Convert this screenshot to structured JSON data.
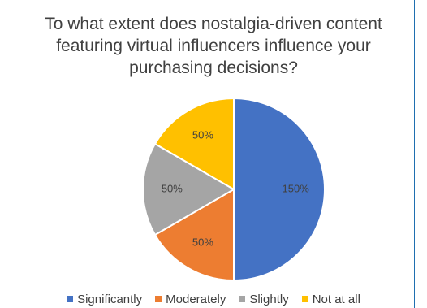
{
  "chart_data": {
    "type": "pie",
    "title_lines": [
      "To what extent does nostalgia-driven content",
      "featuring virtual influencers influence your",
      "purchasing decisions?"
    ],
    "categories": [
      "Significantly",
      "Moderately",
      "Slightly",
      "Not at all"
    ],
    "values": [
      150,
      50,
      50,
      50
    ],
    "data_labels": [
      "150%",
      "50%",
      "50%",
      "50%"
    ],
    "colors": [
      "#4472C4",
      "#ED7D31",
      "#A5A5A5",
      "#FFC000"
    ],
    "legend_position": "bottom",
    "start_angle_deg": 0,
    "direction": "clockwise"
  }
}
